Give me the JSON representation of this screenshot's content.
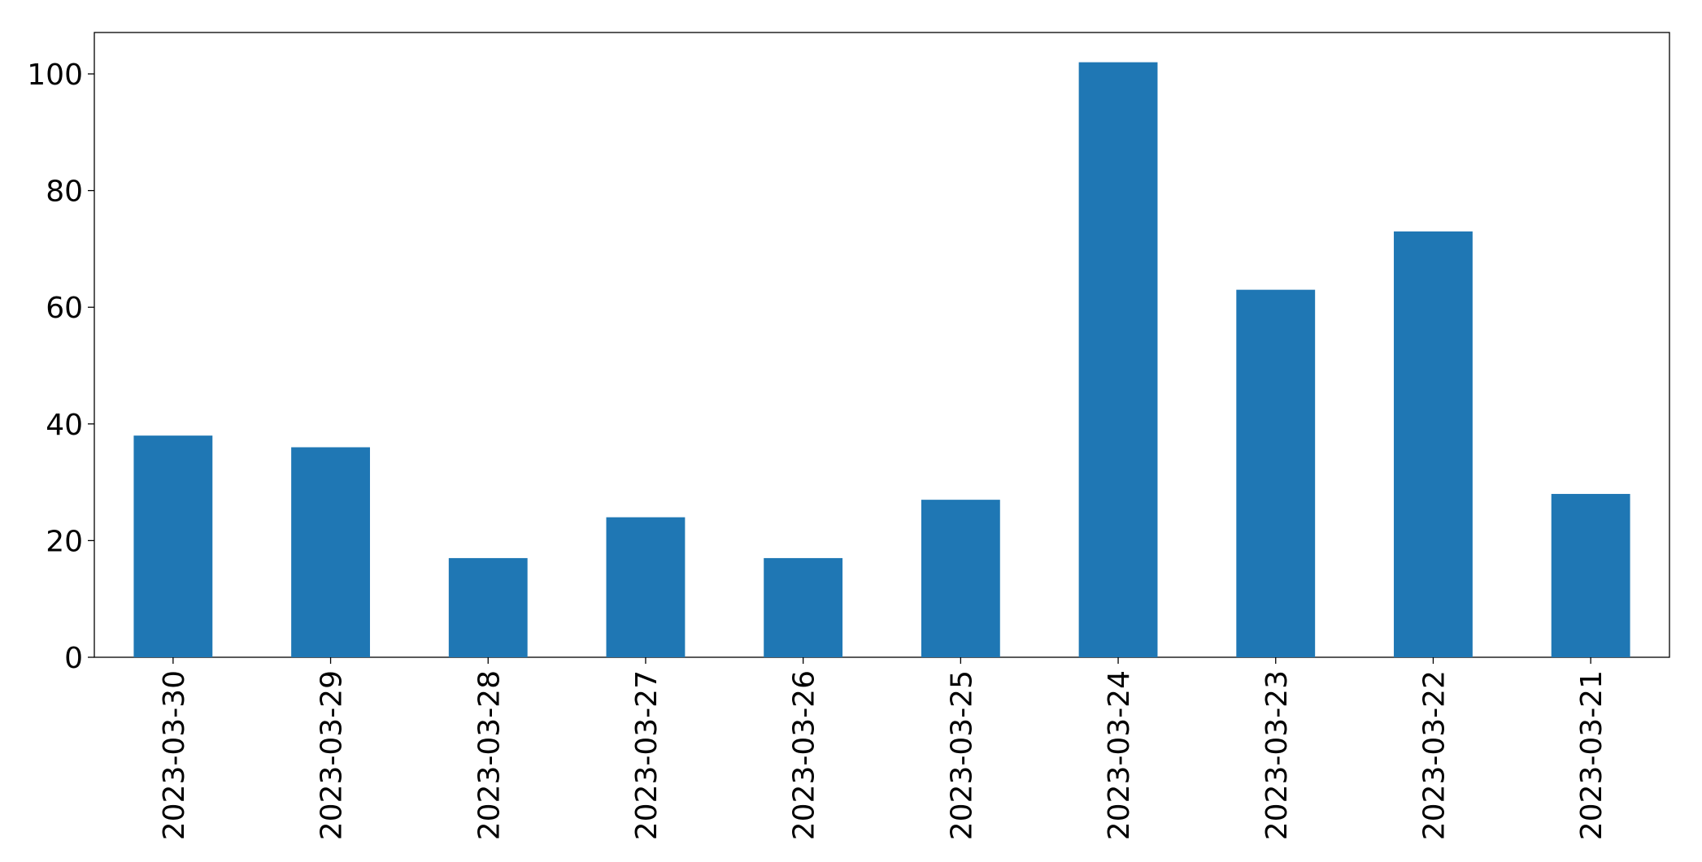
{
  "chart_data": {
    "type": "bar",
    "categories": [
      "2023-03-30",
      "2023-03-29",
      "2023-03-28",
      "2023-03-27",
      "2023-03-26",
      "2023-03-25",
      "2023-03-24",
      "2023-03-23",
      "2023-03-22",
      "2023-03-21"
    ],
    "values": [
      38,
      36,
      17,
      24,
      17,
      27,
      102,
      63,
      73,
      28
    ],
    "color": "#1f77b4",
    "ylim": [
      0,
      107.1
    ],
    "yticks": [
      0,
      20,
      40,
      60,
      80,
      100
    ],
    "grid": false
  }
}
